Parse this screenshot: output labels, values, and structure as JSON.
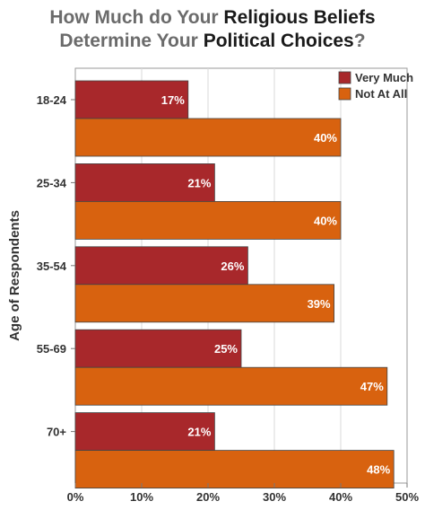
{
  "chart_data": {
    "type": "bar",
    "orientation": "horizontal",
    "title": {
      "line1": [
        "How Much do Your ",
        "Religious Beliefs"
      ],
      "line2": [
        "Determine Your ",
        "Political Choices",
        "?"
      ]
    },
    "ylabel": "Age of Respondents",
    "xlabel": "",
    "categories": [
      "18-24",
      "25-34",
      "35-54",
      "55-69",
      "70+"
    ],
    "series": [
      {
        "name": "Very Much",
        "color": "#a8282b",
        "values": [
          17,
          21,
          26,
          25,
          21
        ]
      },
      {
        "name": "Not At All",
        "color": "#d8620f",
        "values": [
          40,
          40,
          39,
          47,
          48
        ]
      }
    ],
    "value_suffix": "%",
    "xlim": [
      0,
      50
    ],
    "xticks": [
      0,
      10,
      20,
      30,
      40,
      50
    ],
    "xtick_labels": [
      "0%",
      "10%",
      "20%",
      "30%",
      "40%",
      "50%"
    ],
    "grid": true,
    "legend_position": "top-right"
  }
}
